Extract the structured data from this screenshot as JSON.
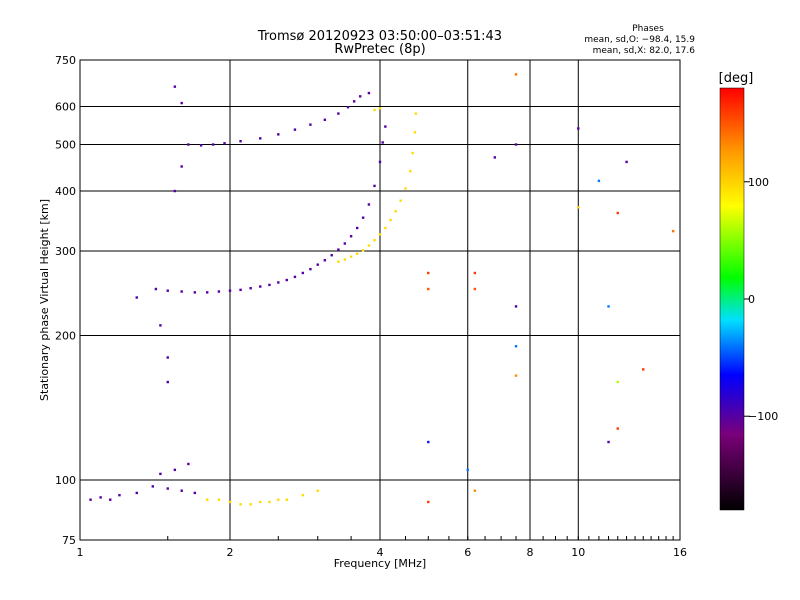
{
  "chart_data": {
    "type": "scatter",
    "title": "Tromsø 20120923 03:50:00–03:51:43",
    "subtitle": "RwPretec (8p)",
    "xlabel": "Frequency [MHz]",
    "ylabel": "Stationary phase Virtual Height [km]",
    "x_scale": "log2",
    "y_scale": "log",
    "xlim": [
      1,
      16
    ],
    "ylim": [
      75,
      750
    ],
    "x_ticks": [
      1,
      2,
      4,
      6,
      8,
      10,
      16
    ],
    "x_tick_labels": [
      "1",
      "2",
      "4",
      "6",
      "8",
      "10",
      "16"
    ],
    "y_ticks": [
      75,
      100,
      200,
      300,
      400,
      500,
      600,
      750
    ],
    "y_tick_labels": [
      "75",
      "100",
      "200",
      "300",
      "400",
      "500",
      "600",
      "750"
    ],
    "grid": true,
    "stats": {
      "heading": "Phases",
      "line_o": "mean, sd,O: −98.4, 15.9",
      "line_x": "mean, sd,X:  82.0, 17.6"
    },
    "colorbar": {
      "label": "[deg]",
      "range": [
        -180,
        180
      ],
      "ticks": [
        100,
        0,
        -100
      ],
      "tick_labels": [
        "100",
        "0",
        "−100"
      ]
    },
    "series": [
      {
        "mode": "O",
        "color_value": -100,
        "points": [
          [
            1.42,
            250
          ],
          [
            1.5,
            248
          ],
          [
            1.6,
            247
          ],
          [
            1.7,
            246
          ],
          [
            1.8,
            246
          ],
          [
            1.9,
            247
          ],
          [
            2.0,
            248
          ],
          [
            2.1,
            249
          ],
          [
            2.2,
            251
          ],
          [
            2.3,
            253
          ],
          [
            2.4,
            255
          ],
          [
            2.5,
            258
          ],
          [
            2.6,
            261
          ],
          [
            2.7,
            265
          ],
          [
            2.8,
            270
          ],
          [
            2.9,
            275
          ],
          [
            3.0,
            281
          ],
          [
            3.1,
            287
          ],
          [
            3.2,
            294
          ],
          [
            3.3,
            302
          ],
          [
            3.4,
            311
          ],
          [
            3.5,
            322
          ],
          [
            3.6,
            335
          ],
          [
            3.7,
            352
          ],
          [
            3.8,
            375
          ],
          [
            3.9,
            410
          ],
          [
            4.0,
            460
          ],
          [
            4.05,
            505
          ],
          [
            4.1,
            545
          ],
          [
            1.65,
            500
          ],
          [
            1.75,
            498
          ],
          [
            1.85,
            500
          ],
          [
            1.95,
            503
          ],
          [
            2.1,
            508
          ],
          [
            2.3,
            515
          ],
          [
            2.5,
            525
          ],
          [
            2.7,
            537
          ],
          [
            2.9,
            550
          ],
          [
            3.1,
            563
          ],
          [
            3.3,
            580
          ],
          [
            3.45,
            598
          ],
          [
            3.55,
            615
          ],
          [
            3.65,
            630
          ],
          [
            3.8,
            640
          ],
          [
            1.05,
            91
          ],
          [
            1.1,
            92
          ],
          [
            1.15,
            91
          ],
          [
            1.2,
            93
          ],
          [
            1.3,
            94
          ],
          [
            1.4,
            97
          ],
          [
            1.5,
            96
          ],
          [
            1.6,
            95
          ],
          [
            1.7,
            94
          ],
          [
            1.45,
            103
          ],
          [
            1.55,
            105
          ],
          [
            1.65,
            108
          ],
          [
            1.5,
            160
          ],
          [
            1.5,
            180
          ],
          [
            1.45,
            210
          ],
          [
            1.55,
            400
          ],
          [
            1.6,
            450
          ],
          [
            1.55,
            660
          ],
          [
            1.6,
            610
          ],
          [
            1.3,
            240
          ]
        ]
      },
      {
        "mode": "X",
        "color_value": 95,
        "points": [
          [
            3.3,
            285
          ],
          [
            3.4,
            288
          ],
          [
            3.5,
            292
          ],
          [
            3.6,
            296
          ],
          [
            3.7,
            301
          ],
          [
            3.8,
            308
          ],
          [
            3.9,
            316
          ],
          [
            4.0,
            325
          ],
          [
            4.1,
            335
          ],
          [
            4.2,
            348
          ],
          [
            4.3,
            363
          ],
          [
            4.4,
            382
          ],
          [
            4.5,
            405
          ],
          [
            4.6,
            440
          ],
          [
            4.65,
            480
          ],
          [
            4.7,
            530
          ],
          [
            4.72,
            580
          ],
          [
            3.9,
            590
          ],
          [
            4.0,
            595
          ],
          [
            1.8,
            91
          ],
          [
            1.9,
            91
          ],
          [
            2.0,
            90
          ],
          [
            2.1,
            89
          ],
          [
            2.2,
            89
          ],
          [
            2.3,
            90
          ],
          [
            2.4,
            90
          ],
          [
            2.5,
            91
          ],
          [
            2.6,
            91
          ],
          [
            2.8,
            93
          ],
          [
            3.0,
            95
          ]
        ]
      },
      {
        "mode": "scatter",
        "points": [
          [
            5.0,
            270,
            160
          ],
          [
            5.0,
            250,
            150
          ],
          [
            6.2,
            270,
            160
          ],
          [
            6.2,
            250,
            150
          ],
          [
            7.5,
            700,
            140
          ],
          [
            7.5,
            230,
            -100
          ],
          [
            7.5,
            190,
            -40
          ],
          [
            7.5,
            165,
            130
          ],
          [
            6.0,
            105,
            -40
          ],
          [
            6.2,
            95,
            130
          ],
          [
            5.0,
            120,
            -60
          ],
          [
            5.0,
            90,
            160
          ],
          [
            10.0,
            540,
            -100
          ],
          [
            11.5,
            230,
            -40
          ],
          [
            12.0,
            360,
            160
          ],
          [
            12.5,
            460,
            -100
          ],
          [
            11.0,
            420,
            -40
          ],
          [
            10.0,
            370,
            100
          ],
          [
            12.0,
            160,
            60
          ],
          [
            11.5,
            120,
            -100
          ],
          [
            12.0,
            128,
            160
          ],
          [
            13.5,
            170,
            160
          ],
          [
            15.5,
            330,
            140
          ],
          [
            6.8,
            470,
            -100
          ],
          [
            7.5,
            500,
            -100
          ]
        ]
      }
    ]
  }
}
